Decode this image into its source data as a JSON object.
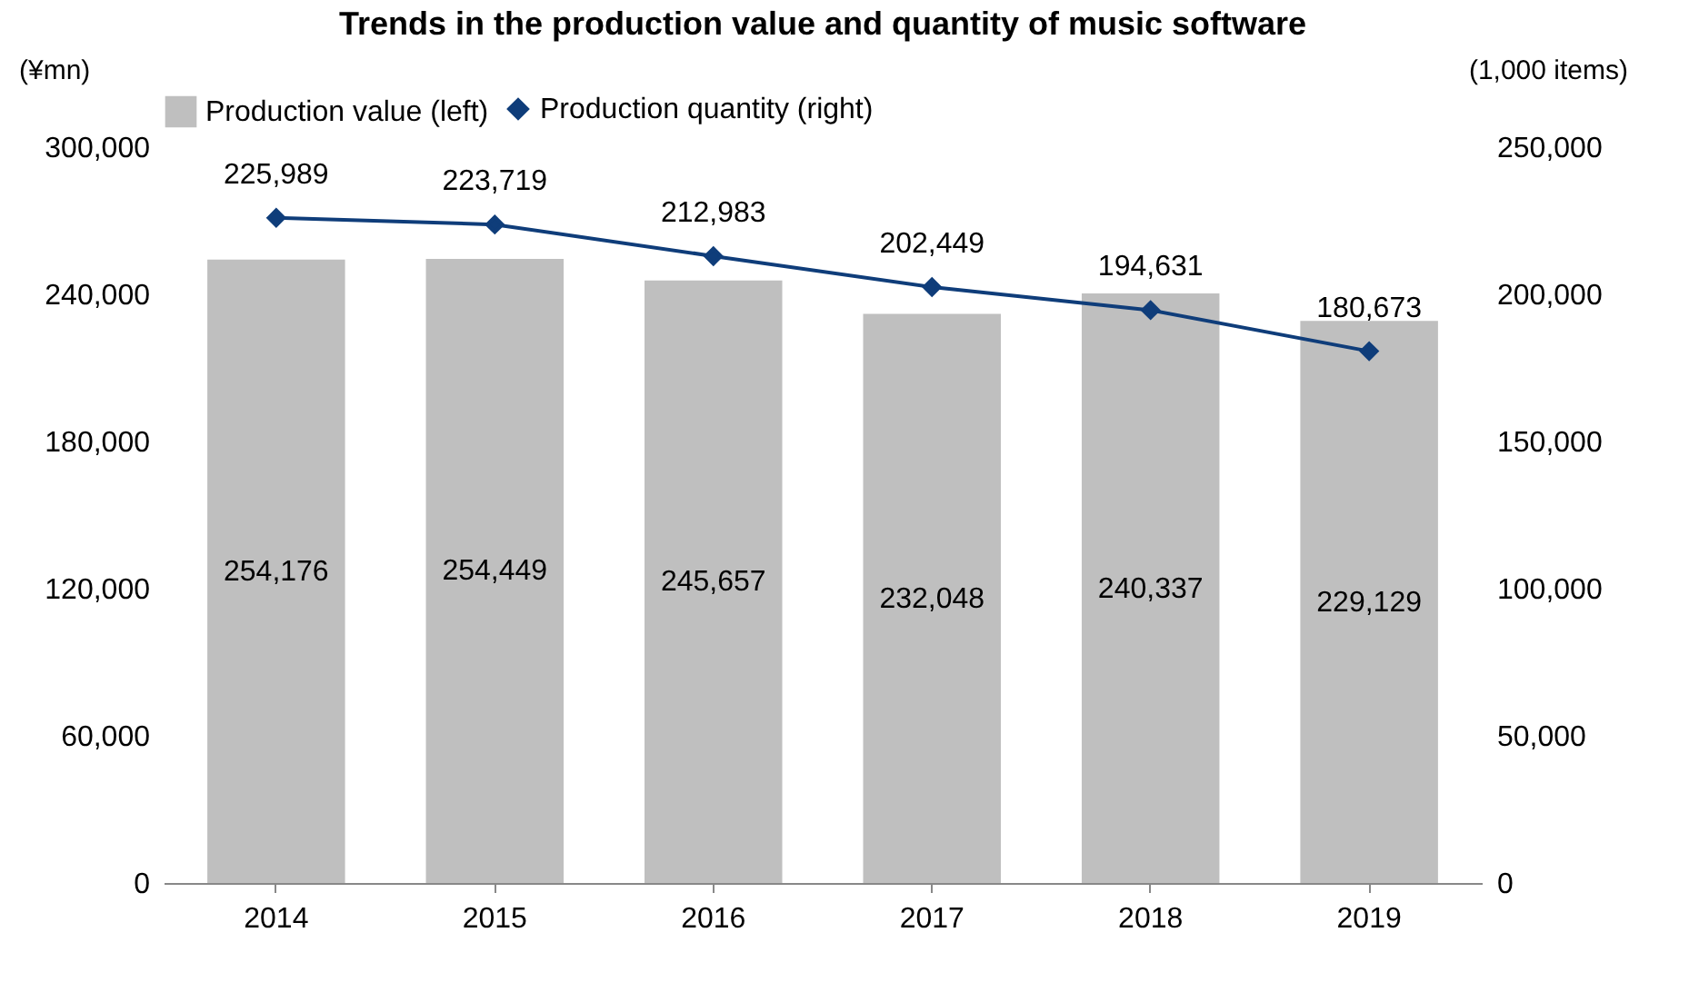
{
  "chart_data": {
    "type": "bar",
    "title": "Trends in the production value and quantity of music software",
    "ylabel": "(¥mn)",
    "y2label": "(1,000 items)",
    "categories": [
      "2014",
      "2015",
      "2016",
      "2017",
      "2018",
      "2019"
    ],
    "series": [
      {
        "name": "Production value (left)",
        "color": "#bfbfbf",
        "values": [
          254176,
          254449,
          245657,
          232048,
          240337,
          229129
        ],
        "value_labels": [
          "254,176",
          "254,449",
          "245,657",
          "232,048",
          "240,337",
          "229,129"
        ]
      },
      {
        "name": "Production quantity (right)",
        "type": "line",
        "axis": "y2",
        "color": "#0f3d7a",
        "marker": "diamond",
        "values": [
          225989,
          223719,
          212983,
          202449,
          194631,
          180673
        ],
        "value_labels": [
          "225,989",
          "223,719",
          "212,983",
          "202,449",
          "194,631",
          "180,673"
        ]
      }
    ],
    "ylim": [
      0,
      300000
    ],
    "yticks": [
      0,
      {
        "value": 60000,
        "label": "60,000"
      },
      {
        "value": 120000,
        "label": "120,000"
      },
      {
        "value": 180000,
        "label": "180,000"
      },
      {
        "value": 240000,
        "label": "240,000"
      },
      {
        "value": 300000,
        "label": "300,000"
      }
    ],
    "y2lim": [
      0,
      250000
    ],
    "y2ticks": [
      0,
      {
        "value": 50000,
        "label": "50,000"
      },
      {
        "value": 100000,
        "label": "100,000"
      },
      {
        "value": 150000,
        "label": "150,000"
      },
      {
        "value": 200000,
        "label": "200,000"
      },
      {
        "value": 250000,
        "label": "250,000"
      }
    ],
    "legend": "top",
    "grid": false
  }
}
